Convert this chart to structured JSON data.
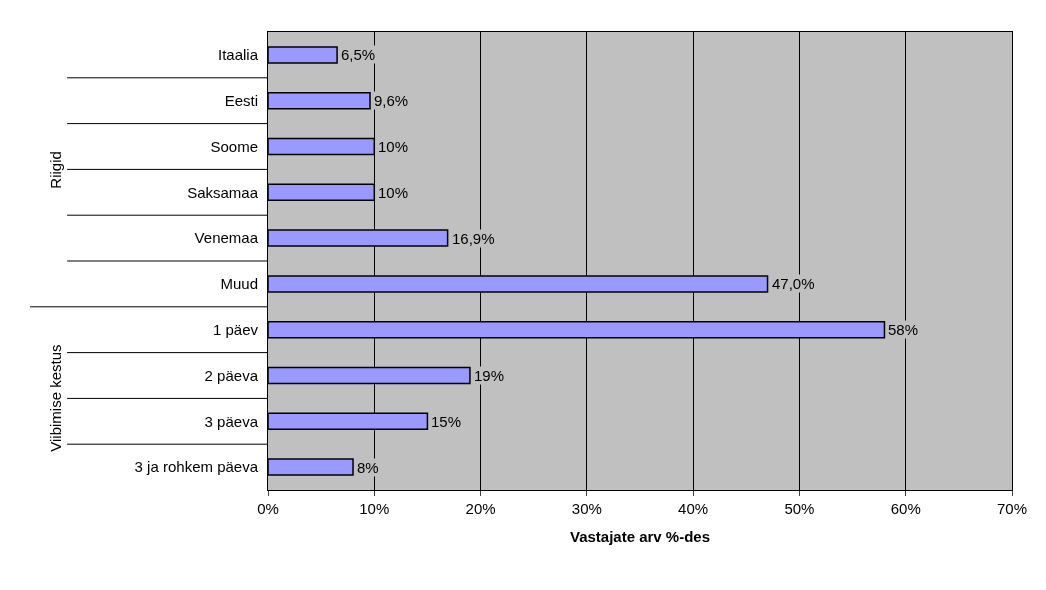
{
  "chart_data": {
    "type": "bar",
    "orientation": "horizontal",
    "xlabel": "Vastajate arv %-des",
    "categories": [
      "Itaalia",
      "Eesti",
      "Soome",
      "Saksamaa",
      "Venemaa",
      "Muud",
      "1 päev",
      "2 päeva",
      "3 päeva",
      "3 ja rohkem päeva"
    ],
    "values": [
      6.5,
      9.6,
      10,
      10,
      16.9,
      47.0,
      58,
      19,
      15,
      8
    ],
    "value_labels": [
      "6,5%",
      "9,6%",
      "10%",
      "10%",
      "16,9%",
      "47,0%",
      "58%",
      "19%",
      "15%",
      "8%"
    ],
    "color": "#9999ff",
    "xlim": [
      0,
      70
    ],
    "xticks": [
      {
        "value": 0,
        "label": "0%"
      },
      {
        "value": 10,
        "label": "10%"
      },
      {
        "value": 20,
        "label": "20%"
      },
      {
        "value": 30,
        "label": "30%"
      },
      {
        "value": 40,
        "label": "40%"
      },
      {
        "value": 50,
        "label": "50%"
      },
      {
        "value": 60,
        "label": "60%"
      },
      {
        "value": 70,
        "label": "70%"
      }
    ],
    "grid": "x",
    "annotations": [
      "Riigid",
      "Viibimise kestus"
    ]
  }
}
